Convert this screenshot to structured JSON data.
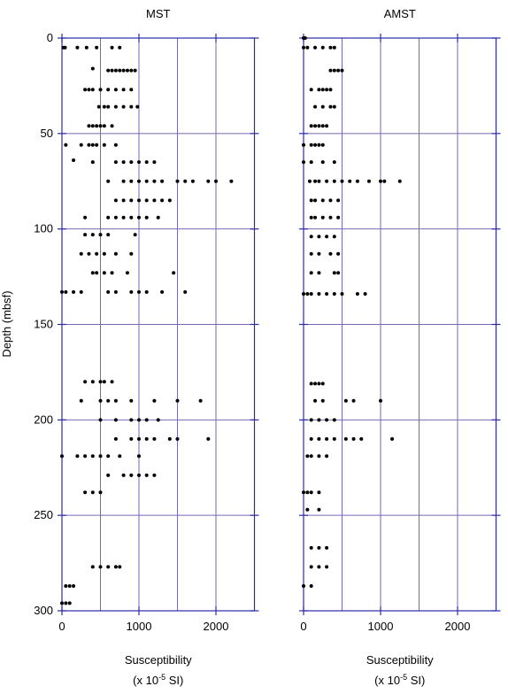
{
  "chart_data": [
    {
      "type": "scatter",
      "title": "MST",
      "ylabel": "Depth (mbsf)",
      "xlabel": [
        "Susceptibility",
        "(x 10",
        "-5",
        " SI)"
      ],
      "xlim": [
        0,
        2500
      ],
      "ylim": [
        0,
        300
      ],
      "y_inverted": true,
      "xticks": [
        0,
        1000,
        2000
      ],
      "yticks": [
        0,
        50,
        100,
        150,
        200,
        250,
        300
      ],
      "xgrid": [
        500,
        1000,
        1500,
        2000
      ],
      "grid": true,
      "color": "#000000",
      "x": [
        20,
        40,
        200,
        320,
        450,
        650,
        750,
        400,
        600,
        650,
        700,
        750,
        800,
        850,
        900,
        950,
        300,
        350,
        400,
        500,
        600,
        700,
        800,
        900,
        480,
        550,
        600,
        700,
        800,
        900,
        980,
        350,
        400,
        450,
        500,
        550,
        650,
        50,
        250,
        350,
        400,
        450,
        550,
        700,
        150,
        400,
        700,
        800,
        900,
        1000,
        1100,
        1200,
        600,
        800,
        900,
        1000,
        1100,
        1200,
        1300,
        1500,
        1600,
        1700,
        1900,
        2000,
        2200,
        700,
        800,
        900,
        1000,
        1100,
        1200,
        1300,
        1400,
        300,
        600,
        700,
        800,
        900,
        1000,
        1100,
        1250,
        300,
        400,
        500,
        600,
        950,
        250,
        350,
        450,
        550,
        700,
        900,
        400,
        450,
        550,
        650,
        850,
        1450,
        0,
        50,
        150,
        250,
        600,
        700,
        900,
        1000,
        1100,
        1300,
        1600,
        300,
        400,
        500,
        550,
        650,
        250,
        500,
        600,
        700,
        900,
        1200,
        1500,
        1800,
        500,
        700,
        900,
        1000,
        1100,
        1250,
        700,
        900,
        1000,
        1100,
        1200,
        1400,
        1500,
        1900,
        0,
        200,
        300,
        400,
        500,
        600,
        750,
        1000,
        600,
        800,
        900,
        1000,
        1100,
        1200,
        300,
        400,
        500,
        400,
        500,
        600,
        700,
        750,
        50,
        100,
        150,
        0,
        50,
        100
      ],
      "y": [
        5,
        5,
        5,
        5,
        5,
        5,
        5,
        16,
        17,
        17,
        17,
        17,
        17,
        17,
        17,
        17,
        27,
        27,
        27,
        27,
        27,
        27,
        27,
        27,
        36,
        36,
        36,
        36,
        36,
        36,
        36,
        46,
        46,
        46,
        46,
        46,
        46,
        56,
        56,
        56,
        56,
        56,
        56,
        56,
        64,
        65,
        65,
        65,
        65,
        65,
        65,
        65,
        75,
        75,
        75,
        75,
        75,
        75,
        75,
        75,
        75,
        75,
        75,
        75,
        75,
        85,
        85,
        85,
        85,
        85,
        85,
        85,
        85,
        94,
        94,
        94,
        94,
        94,
        94,
        94,
        94,
        103,
        103,
        103,
        103,
        103,
        113,
        113,
        113,
        113,
        113,
        113,
        123,
        123,
        123,
        123,
        123,
        123,
        133,
        133,
        133,
        133,
        133,
        133,
        133,
        133,
        133,
        133,
        133,
        180,
        180,
        180,
        180,
        180,
        190,
        190,
        190,
        190,
        190,
        190,
        190,
        190,
        200,
        200,
        200,
        200,
        200,
        200,
        210,
        210,
        210,
        210,
        210,
        210,
        210,
        210,
        219,
        219,
        219,
        219,
        219,
        219,
        219,
        219,
        229,
        229,
        229,
        229,
        229,
        229,
        238,
        238,
        238,
        277,
        277,
        277,
        277,
        277,
        287,
        287,
        287,
        296,
        296,
        296
      ]
    },
    {
      "type": "scatter",
      "title": "AMST",
      "xlabel": [
        "Susceptibility",
        "(x 10",
        "-5",
        " SI)"
      ],
      "xlim": [
        0,
        2500
      ],
      "ylim": [
        0,
        300
      ],
      "y_inverted": true,
      "xticks": [
        0,
        1000,
        2000
      ],
      "yticks": [
        0,
        50,
        100,
        150,
        200,
        250,
        300
      ],
      "xgrid": [
        500,
        1000,
        1500,
        2000
      ],
      "grid": true,
      "color": "#000000",
      "x": [
        0,
        20,
        0,
        50,
        150,
        250,
        350,
        400,
        350,
        400,
        450,
        500,
        100,
        200,
        250,
        300,
        350,
        150,
        250,
        350,
        400,
        100,
        150,
        200,
        250,
        300,
        0,
        100,
        150,
        200,
        250,
        0,
        100,
        250,
        400,
        80,
        150,
        200,
        300,
        400,
        500,
        600,
        700,
        850,
        1000,
        1050,
        1250,
        100,
        150,
        250,
        350,
        450,
        100,
        150,
        250,
        350,
        450,
        100,
        200,
        300,
        400,
        100,
        200,
        350,
        450,
        100,
        200,
        400,
        450,
        0,
        50,
        100,
        200,
        300,
        400,
        500,
        700,
        800,
        100,
        150,
        200,
        250,
        150,
        250,
        550,
        650,
        1000,
        100,
        200,
        300,
        400,
        100,
        200,
        300,
        400,
        550,
        650,
        750,
        1150,
        50,
        100,
        200,
        300,
        0,
        50,
        100,
        200,
        50,
        200,
        100,
        200,
        300,
        100,
        200,
        300,
        0,
        100
      ],
      "y": [
        0,
        0,
        5,
        5,
        5,
        5,
        5,
        5,
        17,
        17,
        17,
        17,
        27,
        27,
        27,
        27,
        27,
        36,
        36,
        36,
        36,
        46,
        46,
        46,
        46,
        46,
        56,
        56,
        56,
        56,
        56,
        65,
        65,
        65,
        65,
        75,
        75,
        75,
        75,
        75,
        75,
        75,
        75,
        75,
        75,
        75,
        75,
        85,
        85,
        85,
        85,
        85,
        94,
        94,
        94,
        94,
        94,
        104,
        104,
        104,
        104,
        113,
        113,
        113,
        113,
        123,
        123,
        123,
        123,
        134,
        134,
        134,
        134,
        134,
        134,
        134,
        134,
        134,
        181,
        181,
        181,
        181,
        190,
        190,
        190,
        190,
        190,
        200,
        200,
        200,
        200,
        210,
        210,
        210,
        210,
        210,
        210,
        210,
        210,
        219,
        219,
        219,
        219,
        238,
        238,
        238,
        238,
        247,
        247,
        267,
        267,
        267,
        277,
        277,
        277,
        287,
        287
      ]
    }
  ]
}
